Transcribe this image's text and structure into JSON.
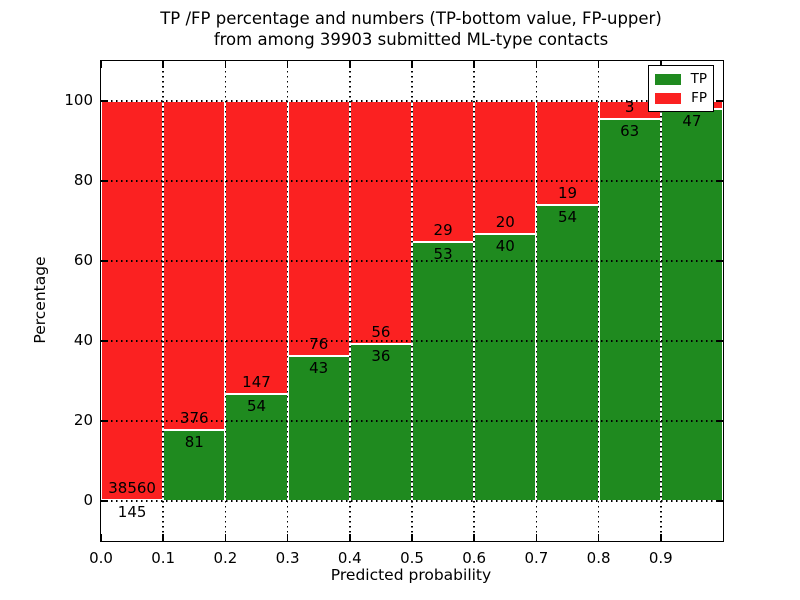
{
  "figure": {
    "title_line1": "TP /FP percentage and numbers (TP-bottom value, FP-upper)",
    "title_line2": "from among 39903 submitted ML-type contacts"
  },
  "chart_data": {
    "type": "bar",
    "stacked": true,
    "title": "TP /FP percentage and numbers (TP-bottom value, FP-upper) from among 39903 submitted ML-type contacts",
    "xlabel": "Predicted probability",
    "ylabel": "Percentage",
    "xlim": [
      0.0,
      1.0
    ],
    "ylim": [
      -10,
      110
    ],
    "total_contacts": 39903,
    "bin_edges": [
      0.0,
      0.1,
      0.2,
      0.3,
      0.4,
      0.5,
      0.6,
      0.7,
      0.8,
      0.9,
      1.0
    ],
    "x_tick_values": [
      0.0,
      0.1,
      0.2,
      0.3,
      0.4,
      0.5,
      0.6,
      0.7,
      0.8,
      0.9
    ],
    "x_tick_labels": [
      "0.0",
      "0.1",
      "0.2",
      "0.3",
      "0.4",
      "0.5",
      "0.6",
      "0.7",
      "0.8",
      "0.9"
    ],
    "y_tick_values": [
      0,
      20,
      40,
      60,
      80,
      100
    ],
    "y_tick_labels": [
      "0",
      "20",
      "40",
      "60",
      "80",
      "100"
    ],
    "grid": "dotted",
    "legend_position": "upper right",
    "colors": {
      "tp": "#1f8a1f",
      "fp": "#fb2121",
      "bar_edge": "#ffffff",
      "grid": "#000000"
    },
    "series": [
      {
        "name": "TP",
        "position": "bottom",
        "color": "#1f8a1f",
        "counts": [
          145,
          81,
          54,
          43,
          36,
          53,
          40,
          54,
          63,
          47
        ],
        "pct": [
          0.37,
          17.72,
          26.87,
          36.13,
          39.13,
          64.63,
          66.67,
          73.97,
          95.45,
          97.92
        ]
      },
      {
        "name": "FP",
        "position": "top",
        "color": "#fb2121",
        "counts": [
          38560,
          376,
          147,
          76,
          56,
          29,
          20,
          19,
          3,
          null
        ],
        "pct": [
          99.63,
          82.28,
          73.13,
          63.87,
          60.87,
          35.37,
          33.33,
          26.03,
          4.55,
          2.08
        ]
      }
    ],
    "bar_count_labels": {
      "fp": [
        "38560",
        "376",
        "147",
        "76",
        "56",
        "29",
        "20",
        "19",
        "3",
        ""
      ],
      "tp": [
        "145",
        "81",
        "54",
        "43",
        "36",
        "53",
        "40",
        "54",
        "63",
        "47"
      ]
    }
  }
}
